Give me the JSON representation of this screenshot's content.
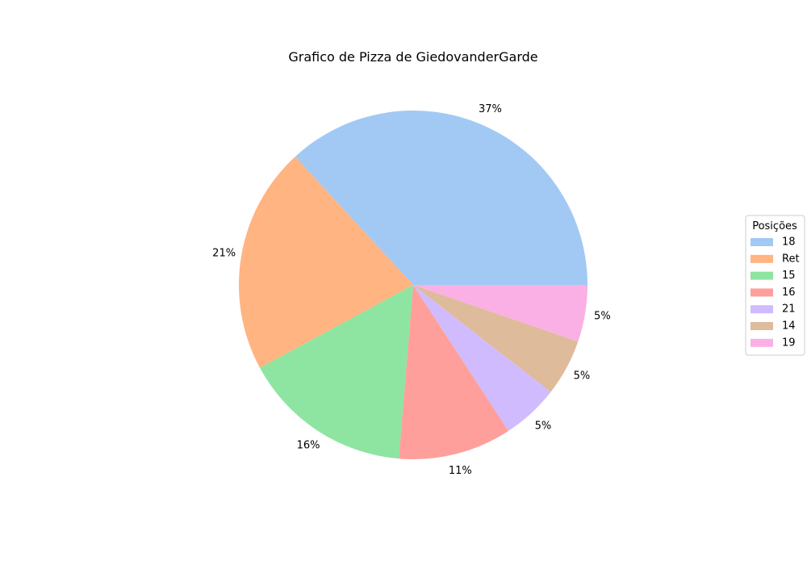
{
  "chart_data": {
    "type": "pie",
    "title": "Grafico de Pizza de GiedovanderGarde",
    "legend_title": "Posições",
    "legend_position": "right",
    "start_angle_deg": 0,
    "direction": "counterclockwise",
    "slices": [
      {
        "label": "18",
        "value": 7,
        "pct_label": "37%",
        "color": "#a1c9f4"
      },
      {
        "label": "Ret",
        "value": 4,
        "pct_label": "21%",
        "color": "#ffb482"
      },
      {
        "label": "15",
        "value": 3,
        "pct_label": "16%",
        "color": "#8de5a1"
      },
      {
        "label": "16",
        "value": 2,
        "pct_label": "11%",
        "color": "#ff9f9b"
      },
      {
        "label": "21",
        "value": 1,
        "pct_label": "5%",
        "color": "#d0bbff"
      },
      {
        "label": "14",
        "value": 1,
        "pct_label": "5%",
        "color": "#debb9b"
      },
      {
        "label": "19",
        "value": 1,
        "pct_label": "5%",
        "color": "#fab0e4"
      }
    ]
  }
}
